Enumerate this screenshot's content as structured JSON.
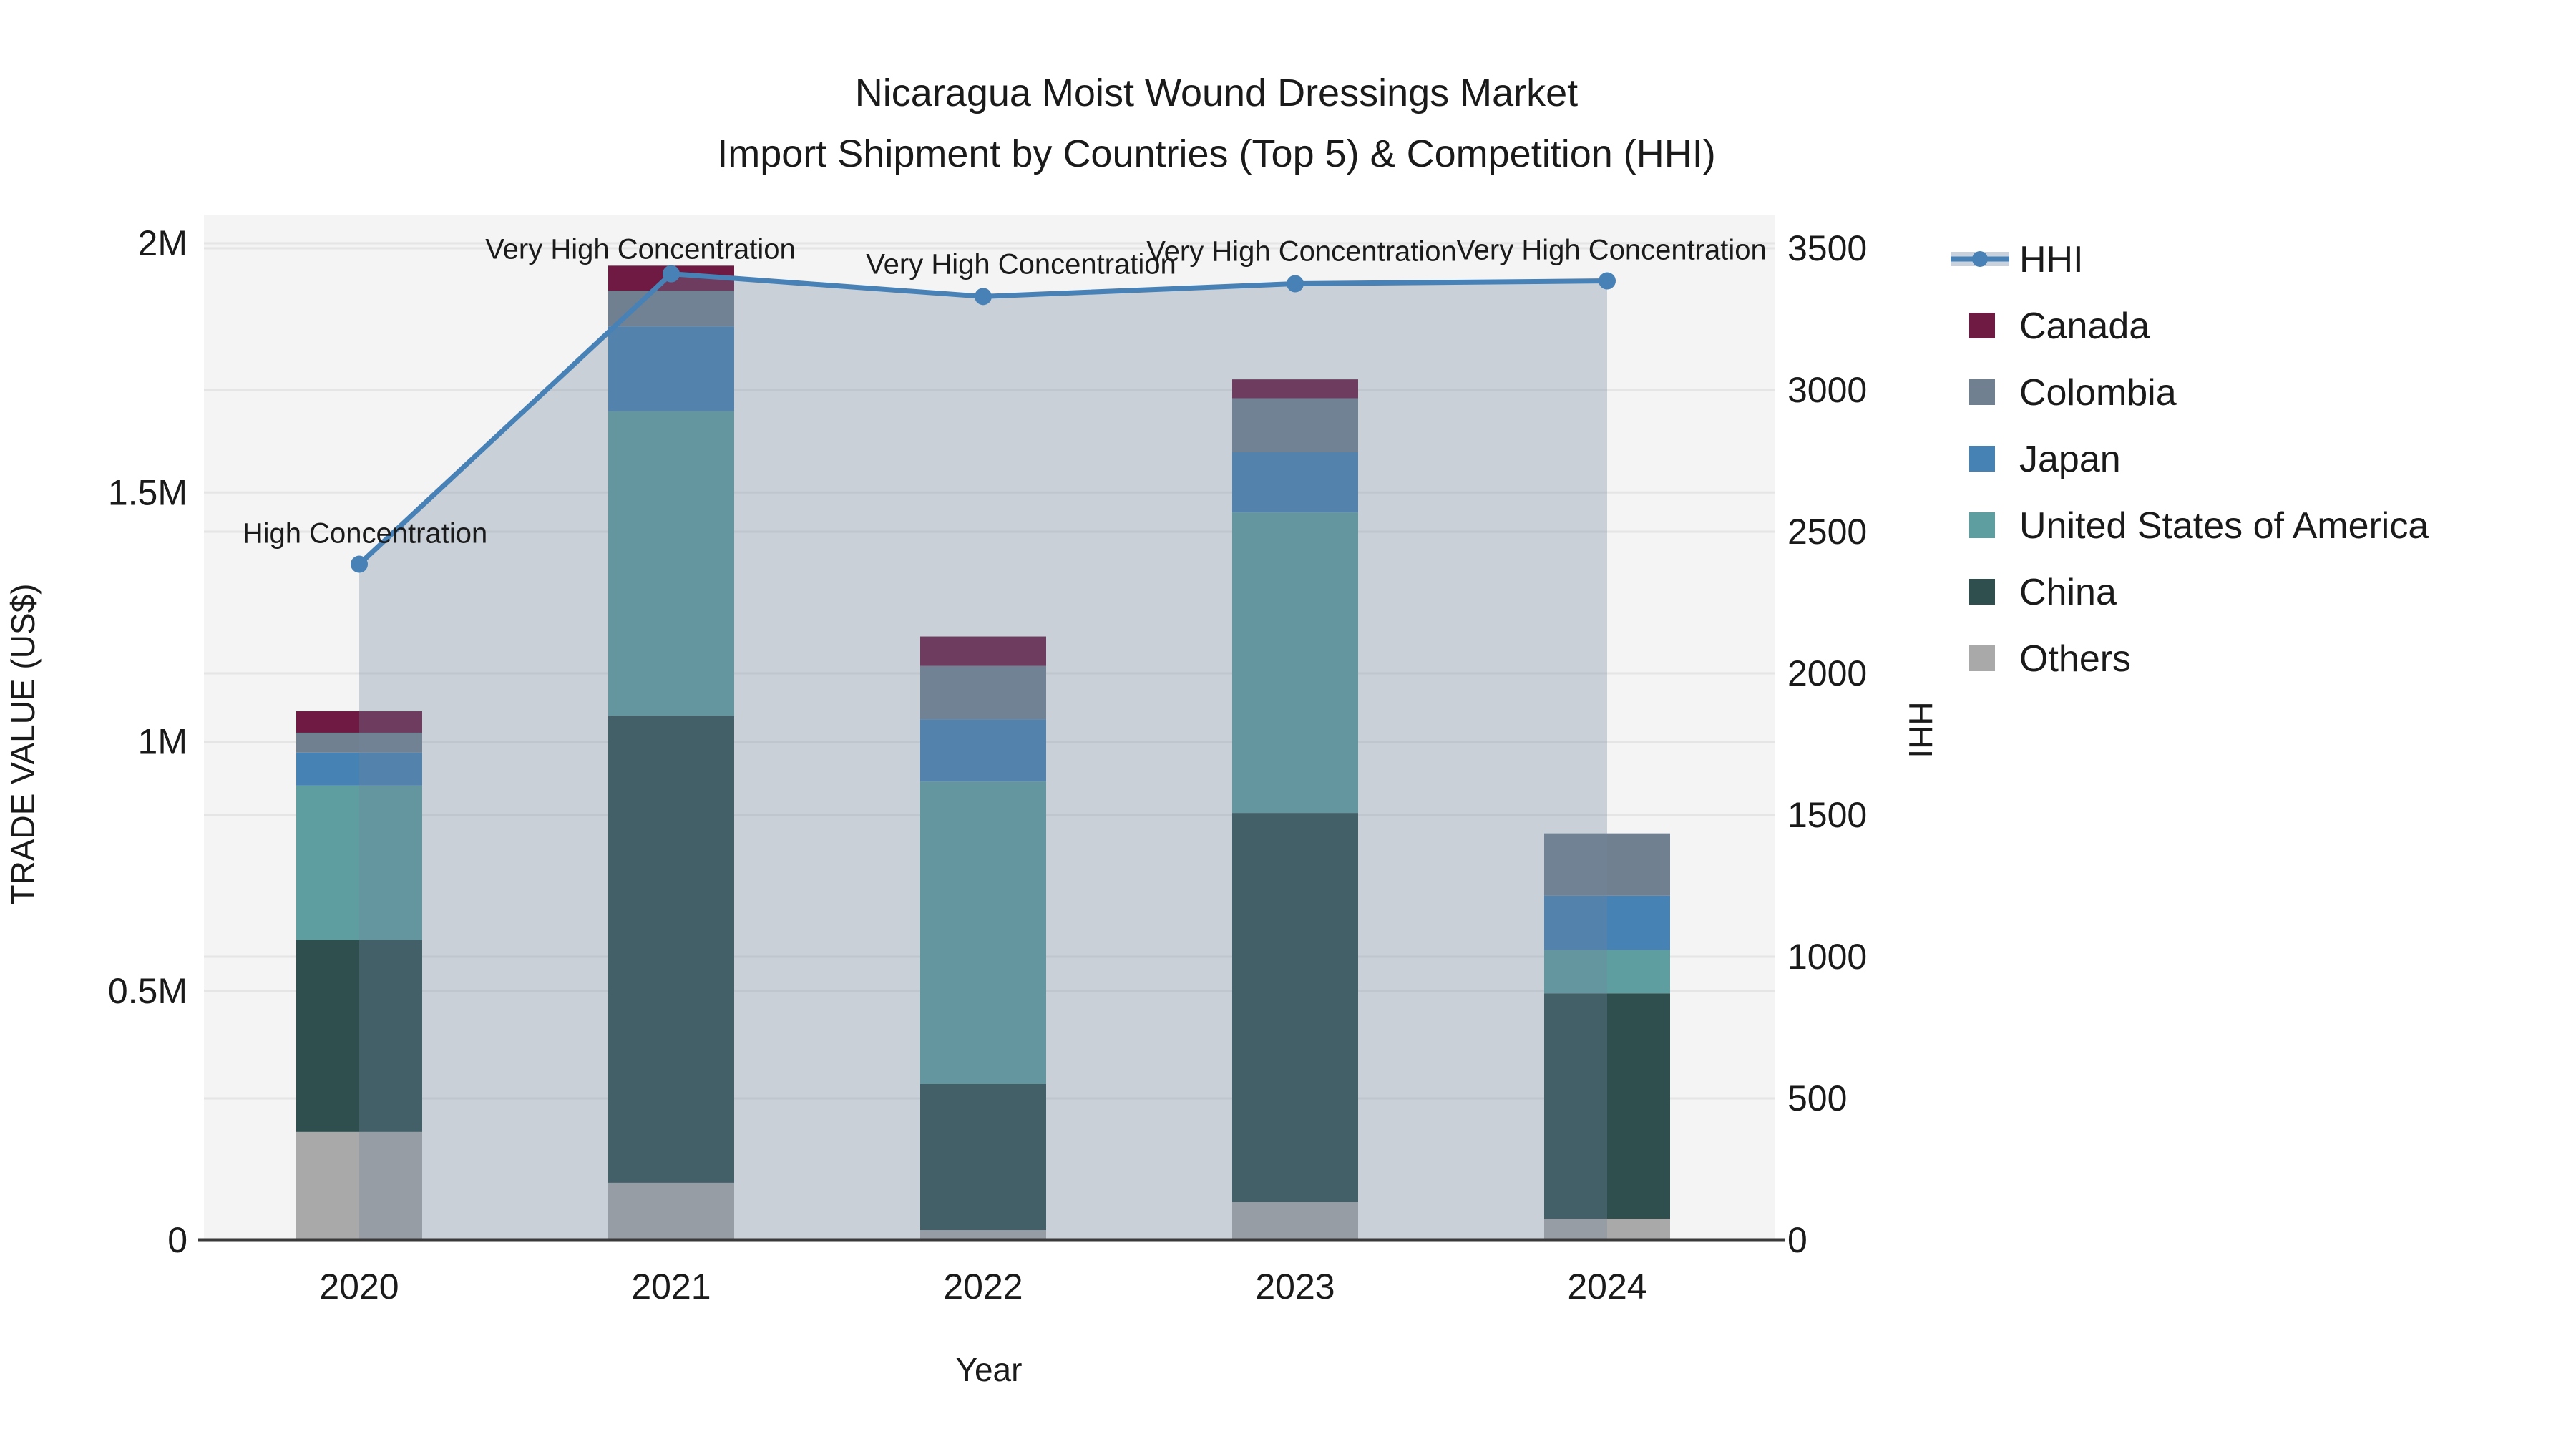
{
  "title": {
    "line1": "Nicaragua Moist Wound Dressings Market",
    "line2": "Import Shipment by Countries (Top 5) & Competition (HHI)"
  },
  "axes": {
    "x_title": "Year",
    "y_left_title": "TRADE VALUE (US$)",
    "y_right_title": "HHI",
    "y_left_ticks": [
      {
        "label": "0",
        "value": 0
      },
      {
        "label": "0.5M",
        "value": 500000
      },
      {
        "label": "1M",
        "value": 1000000
      },
      {
        "label": "1.5M",
        "value": 1500000
      },
      {
        "label": "2M",
        "value": 2000000
      }
    ],
    "y_right_ticks": [
      {
        "label": "0",
        "value": 0
      },
      {
        "label": "500",
        "value": 500
      },
      {
        "label": "1000",
        "value": 1000
      },
      {
        "label": "1500",
        "value": 1500
      },
      {
        "label": "2000",
        "value": 2000
      },
      {
        "label": "2500",
        "value": 2500
      },
      {
        "label": "3000",
        "value": 3000
      },
      {
        "label": "3500",
        "value": 3500
      }
    ]
  },
  "legend": {
    "order": [
      "HHI",
      "Canada",
      "Colombia",
      "Japan",
      "United States of America",
      "China",
      "Others"
    ]
  },
  "chart_data": {
    "type": "bar+line",
    "categories": [
      "2020",
      "2021",
      "2022",
      "2023",
      "2024"
    ],
    "xlabel": "Year",
    "ylabel_left": "TRADE VALUE (US$)",
    "ylabel_right": "HHI",
    "y_left_range": [
      0,
      2000000
    ],
    "y_right_range": [
      0,
      3500
    ],
    "stacked_series": [
      {
        "name": "Others",
        "color": "#a9a9a9",
        "values": [
          217000,
          115000,
          20000,
          76000,
          43000
        ]
      },
      {
        "name": "China",
        "color": "#2f4f4f",
        "values": [
          385000,
          937000,
          293000,
          781000,
          452000
        ]
      },
      {
        "name": "United States of America",
        "color": "#5f9ea0",
        "values": [
          310000,
          611000,
          607000,
          603000,
          87000
        ]
      },
      {
        "name": "Japan",
        "color": "#4682b4",
        "values": [
          66000,
          170000,
          125000,
          121000,
          109000
        ]
      },
      {
        "name": "Colombia",
        "color": "#708090",
        "values": [
          40000,
          72000,
          107000,
          108000,
          125000
        ]
      },
      {
        "name": "Canada",
        "color": "#6e1a42",
        "values": [
          43000,
          50000,
          59000,
          38000,
          0
        ]
      }
    ],
    "line_series": {
      "name": "HHI",
      "color": "#4781b5",
      "area_fill": "rgba(112,134,159,0.32)",
      "values": [
        2385,
        3410,
        3330,
        3375,
        3385
      ]
    },
    "annotations": [
      {
        "category": "2020",
        "text": "High Concentration"
      },
      {
        "category": "2021",
        "text": "Very High Concentration"
      },
      {
        "category": "2022",
        "text": "Very High Concentration"
      },
      {
        "category": "2023",
        "text": "Very High Concentration"
      },
      {
        "category": "2024",
        "text": "Very High Concentration"
      }
    ]
  },
  "style": {
    "plot_bg": "#f4f4f4",
    "grid": "#e5e5e5",
    "axis_line": "#3a3a3a",
    "text": "#1a1a1a"
  }
}
